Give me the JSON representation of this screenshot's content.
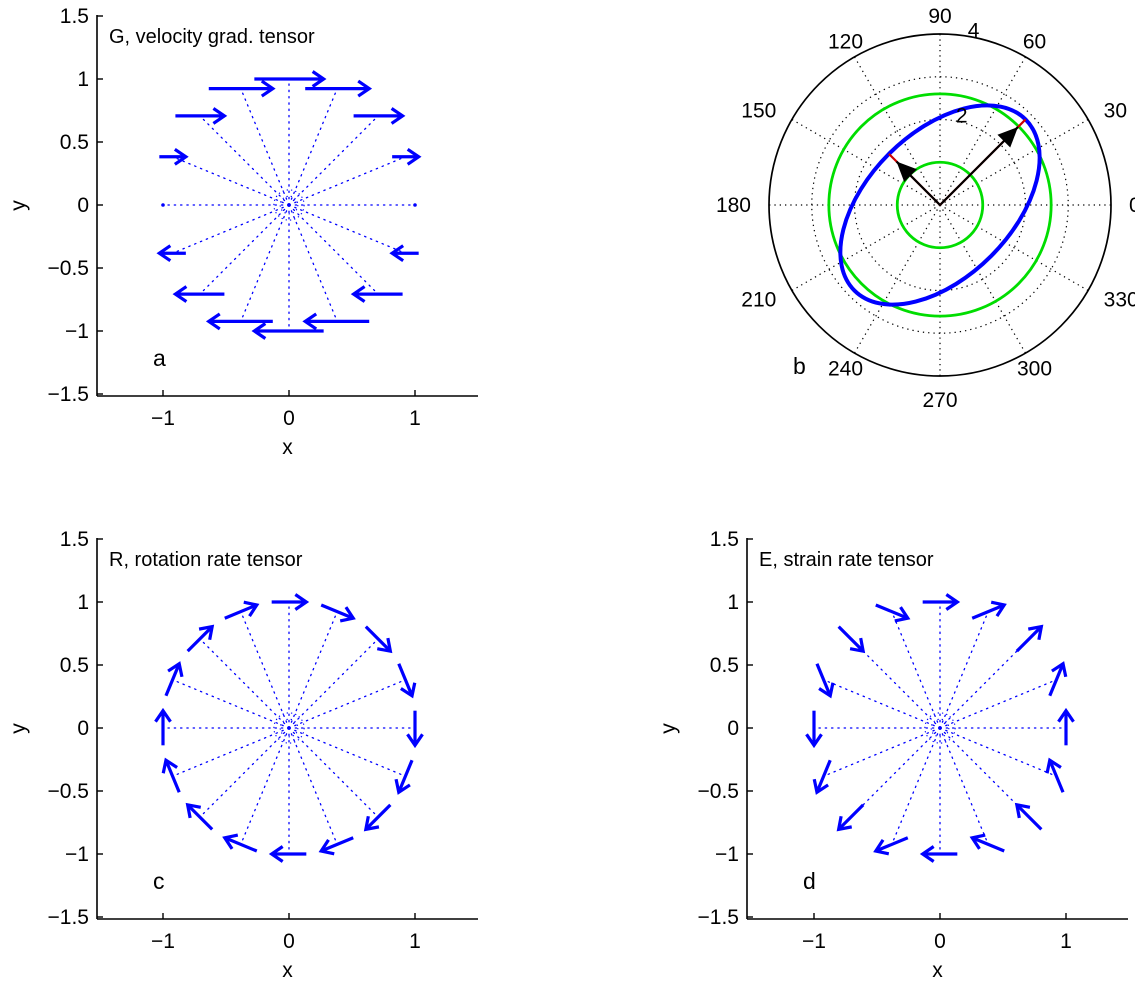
{
  "colors": {
    "quiver": "#0000ff",
    "radial_dots": "#0000ff",
    "polar_circle": "#00dd00",
    "ellipse": "#0000ff",
    "eigvec_arrow": "#000000",
    "eigvec_tip": "#cc0000",
    "axis": "#000000"
  },
  "chart_data": [
    {
      "id": "a",
      "type": "quiver",
      "title": "G, velocity grad. tensor",
      "panel_label": "a",
      "xlabel": "x",
      "ylabel": "y",
      "xlim": [
        -1.5,
        1.5
      ],
      "ylim": [
        -1.5,
        1.5
      ],
      "xticks": [
        -1,
        0,
        1
      ],
      "xtick_labels": [
        "−1",
        "0",
        "1"
      ],
      "yticks": [
        -1.5,
        -1,
        -0.5,
        0,
        0.5,
        1,
        1.5
      ],
      "ytick_labels": [
        "−1.5",
        "−1",
        "−0.5",
        "0",
        "0.5",
        "1",
        "1.5"
      ],
      "grid": false,
      "tensor": [
        [
          0,
          1
        ],
        [
          0,
          0
        ]
      ],
      "n_rays": 16,
      "arrow_scale": 0.55
    },
    {
      "id": "b",
      "type": "polar",
      "panel_label": "b",
      "angle_labels": [
        "0",
        "30",
        "60",
        "90",
        "120",
        "150",
        "180",
        "210",
        "240",
        "270",
        "300",
        "330"
      ],
      "r_max": 4,
      "r_ticks": [
        2,
        4
      ],
      "r_tick_labels": [
        "2",
        "4"
      ],
      "green_circles_r": [
        1,
        2.6
      ],
      "ellipse": {
        "semi_major": 2.83,
        "semi_minor": 1.69,
        "orientation_deg": 45
      },
      "eigenvectors": [
        {
          "angle_deg": 45,
          "length": 2.83
        },
        {
          "angle_deg": 135,
          "length": 1.69
        }
      ]
    },
    {
      "id": "c",
      "type": "quiver",
      "title": "R, rotation rate tensor",
      "panel_label": "c",
      "xlabel": "x",
      "ylabel": "y",
      "xlim": [
        -1.5,
        1.5
      ],
      "ylim": [
        -1.5,
        1.5
      ],
      "xticks": [
        -1,
        0,
        1
      ],
      "xtick_labels": [
        "−1",
        "0",
        "1"
      ],
      "yticks": [
        -1.5,
        -1,
        -0.5,
        0,
        0.5,
        1,
        1.5
      ],
      "ytick_labels": [
        "−1.5",
        "−1",
        "−0.5",
        "0",
        "0.5",
        "1",
        "1.5"
      ],
      "grid": false,
      "tensor": [
        [
          0,
          0.5
        ],
        [
          -0.5,
          0
        ]
      ],
      "n_rays": 16,
      "arrow_scale": 0.55
    },
    {
      "id": "d",
      "type": "quiver",
      "title": "E, strain rate tensor",
      "panel_label": "d",
      "xlabel": "x",
      "ylabel": "y",
      "xlim": [
        -1.5,
        1.5
      ],
      "ylim": [
        -1.5,
        1.5
      ],
      "xticks": [
        -1,
        0,
        1
      ],
      "xtick_labels": [
        "−1",
        "0",
        "1"
      ],
      "yticks": [
        -1.5,
        -1,
        -0.5,
        0,
        0.5,
        1,
        1.5
      ],
      "ytick_labels": [
        "−1.5",
        "−1",
        "−0.5",
        "0",
        "0.5",
        "1",
        "1.5"
      ],
      "grid": false,
      "tensor": [
        [
          0,
          0.5
        ],
        [
          0.5,
          0
        ]
      ],
      "n_rays": 16,
      "arrow_scale": 0.55
    }
  ]
}
